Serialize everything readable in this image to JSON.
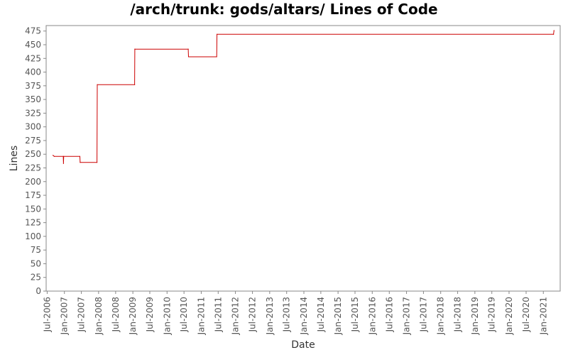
{
  "chart_data": {
    "type": "line",
    "title": "/arch/trunk: gods/altars/ Lines of Code",
    "xlabel": "Date",
    "ylabel": "Lines",
    "ylim": [
      0,
      485
    ],
    "xlim": [
      "2006-06-20",
      "2021-06-30"
    ],
    "grid": false,
    "line_color": "#cc0000",
    "y_ticks": [
      0,
      25,
      50,
      75,
      100,
      125,
      150,
      175,
      200,
      225,
      250,
      275,
      300,
      325,
      350,
      375,
      400,
      425,
      450,
      475
    ],
    "x_ticks": [
      {
        "label": "Jul-2006",
        "date": "2006-07-01"
      },
      {
        "label": "Jan-2007",
        "date": "2007-01-01"
      },
      {
        "label": "Jul-2007",
        "date": "2007-07-01"
      },
      {
        "label": "Jan-2008",
        "date": "2008-01-01"
      },
      {
        "label": "Jul-2008",
        "date": "2008-07-01"
      },
      {
        "label": "Jan-2009",
        "date": "2009-01-01"
      },
      {
        "label": "Jul-2009",
        "date": "2009-07-01"
      },
      {
        "label": "Jan-2010",
        "date": "2010-01-01"
      },
      {
        "label": "Jul-2010",
        "date": "2010-07-01"
      },
      {
        "label": "Jan-2011",
        "date": "2011-01-01"
      },
      {
        "label": "Jul-2011",
        "date": "2011-07-01"
      },
      {
        "label": "Jan-2012",
        "date": "2012-01-01"
      },
      {
        "label": "Jul-2012",
        "date": "2012-07-01"
      },
      {
        "label": "Jan-2013",
        "date": "2013-01-01"
      },
      {
        "label": "Jul-2013",
        "date": "2013-07-01"
      },
      {
        "label": "Jan-2014",
        "date": "2014-01-01"
      },
      {
        "label": "Jul-2014",
        "date": "2014-07-01"
      },
      {
        "label": "Jan-2015",
        "date": "2015-01-01"
      },
      {
        "label": "Jul-2015",
        "date": "2015-07-01"
      },
      {
        "label": "Jan-2016",
        "date": "2016-01-01"
      },
      {
        "label": "Jul-2016",
        "date": "2016-07-01"
      },
      {
        "label": "Jan-2017",
        "date": "2017-01-01"
      },
      {
        "label": "Jul-2017",
        "date": "2017-07-01"
      },
      {
        "label": "Jan-2018",
        "date": "2018-01-01"
      },
      {
        "label": "Jul-2018",
        "date": "2018-07-01"
      },
      {
        "label": "Jan-2019",
        "date": "2019-01-01"
      },
      {
        "label": "Jul-2019",
        "date": "2019-07-01"
      },
      {
        "label": "Jan-2020",
        "date": "2020-01-01"
      },
      {
        "label": "Jul-2020",
        "date": "2020-07-01"
      },
      {
        "label": "Jan-2021",
        "date": "2021-01-01"
      }
    ],
    "series": [
      {
        "values": [
          {
            "x": "2006-09-01",
            "y": 248
          },
          {
            "x": "2006-09-15",
            "y": 246
          },
          {
            "x": "2006-12-20",
            "y": 246
          },
          {
            "x": "2006-12-22",
            "y": 233
          },
          {
            "x": "2006-12-24",
            "y": 246
          },
          {
            "x": "2007-06-15",
            "y": 246
          },
          {
            "x": "2007-06-18",
            "y": 235
          },
          {
            "x": "2007-12-15",
            "y": 235
          },
          {
            "x": "2007-12-18",
            "y": 377
          },
          {
            "x": "2009-01-20",
            "y": 377
          },
          {
            "x": "2009-01-22",
            "y": 442
          },
          {
            "x": "2010-08-15",
            "y": 442
          },
          {
            "x": "2010-08-18",
            "y": 428
          },
          {
            "x": "2011-06-15",
            "y": 428
          },
          {
            "x": "2011-06-18",
            "y": 469
          },
          {
            "x": "2021-04-20",
            "y": 469
          },
          {
            "x": "2021-04-25",
            "y": 476
          }
        ]
      }
    ]
  }
}
